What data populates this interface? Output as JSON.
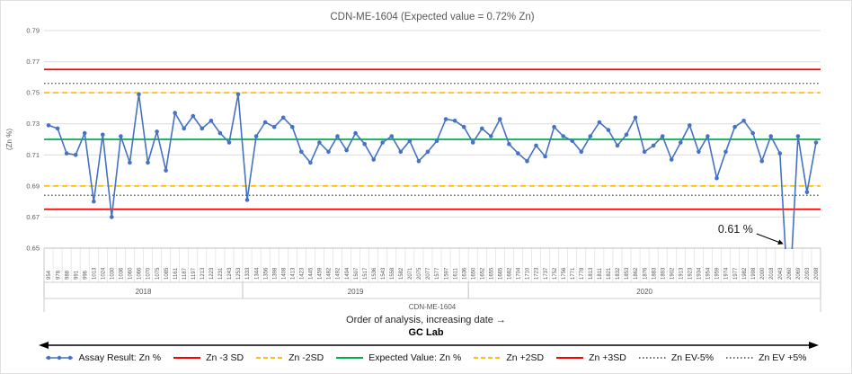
{
  "title": "CDN-ME-1604 (Expected value = 0.72% Zn)",
  "colors": {
    "series": "#4472c4",
    "red": "#ff0000",
    "gold": "#ffc000",
    "green": "#00b050",
    "dotted": "#404040",
    "grid": "#dcdcdc",
    "axis": "#bfbfbf",
    "text": "#595959"
  },
  "chart_data": {
    "type": "line",
    "title": "CDN-ME-1604 (Expected value = 0.72% Zn)",
    "ylabel": "(Zn %)",
    "xlabel": "Order of analysis, increasing date →",
    "footer": "GC Lab",
    "axis_group_label": "CDN-ME-1604",
    "ylim": [
      0.65,
      0.79
    ],
    "ytick_step": 0.02,
    "grid": true,
    "legend_position": "bottom",
    "categories": [
      "954",
      "978",
      "988",
      "991",
      "996",
      "1013",
      "1024",
      "1030",
      "1036",
      "1060",
      "1066",
      "1070",
      "1075",
      "1085",
      "1161",
      "1187",
      "1197",
      "1213",
      "1223",
      "1231",
      "1243",
      "1253",
      "1333",
      "1344",
      "1356",
      "1398",
      "1408",
      "1413",
      "1423",
      "1445",
      "1459",
      "1482",
      "1492",
      "1494",
      "1507",
      "1517",
      "1536",
      "1543",
      "1558",
      "1582",
      "2071",
      "2075",
      "2077",
      "1577",
      "1597",
      "1611",
      "1636",
      "1650",
      "1652",
      "1655",
      "1665",
      "1682",
      "1704",
      "1710",
      "1723",
      "1737",
      "1752",
      "1756",
      "1771",
      "1778",
      "1813",
      "1811",
      "1821",
      "1832",
      "1853",
      "1862",
      "1876",
      "1883",
      "1893",
      "1902",
      "1913",
      "1923",
      "1934",
      "1954",
      "1959",
      "1974",
      "1977",
      "1982",
      "1998",
      "2000",
      "2018",
      "2043",
      "2060",
      "2069",
      "2093",
      "2098"
    ],
    "series": [
      {
        "name": "Assay Result: Zn %",
        "color": "#4472c4",
        "values": [
          0.729,
          0.727,
          0.711,
          0.71,
          0.724,
          0.68,
          0.723,
          0.67,
          0.722,
          0.705,
          0.749,
          0.705,
          0.725,
          0.7,
          0.737,
          0.727,
          0.735,
          0.727,
          0.732,
          0.724,
          0.718,
          0.749,
          0.681,
          0.722,
          0.731,
          0.728,
          0.734,
          0.728,
          0.712,
          0.705,
          0.718,
          0.712,
          0.722,
          0.713,
          0.724,
          0.717,
          0.707,
          0.718,
          0.722,
          0.712,
          0.719,
          0.706,
          0.712,
          0.719,
          0.733,
          0.732,
          0.728,
          0.718,
          0.727,
          0.722,
          0.733,
          0.717,
          0.711,
          0.706,
          0.716,
          0.709,
          0.728,
          0.722,
          0.719,
          0.712,
          0.722,
          0.731,
          0.726,
          0.716,
          0.723,
          0.734,
          0.712,
          0.716,
          0.722,
          0.707,
          0.718,
          0.729,
          0.712,
          0.722,
          0.695,
          0.712,
          0.728,
          0.732,
          0.724,
          0.706,
          0.722,
          0.711,
          0.61,
          0.722,
          0.686,
          0.718
        ]
      }
    ],
    "reference_lines": [
      {
        "label": "Zn +3SD",
        "value": 0.765,
        "color": "#ff0000",
        "style": "solid"
      },
      {
        "label": "Zn EV +5%",
        "value": 0.756,
        "color": "#404040",
        "style": "dotted"
      },
      {
        "label": "Zn +2SD",
        "value": 0.75,
        "color": "#ffc000",
        "style": "dashed"
      },
      {
        "label": "Expected Value: Zn %",
        "value": 0.72,
        "color": "#00b050",
        "style": "solid"
      },
      {
        "label": "Zn -2SD",
        "value": 0.69,
        "color": "#ffc000",
        "style": "dashed"
      },
      {
        "label": "Zn EV-5%",
        "value": 0.684,
        "color": "#404040",
        "style": "dotted"
      },
      {
        "label": "Zn -3 SD",
        "value": 0.675,
        "color": "#ff0000",
        "style": "solid"
      }
    ],
    "year_bands": [
      {
        "label": "2018",
        "from": 0,
        "to": 21
      },
      {
        "label": "2019",
        "from": 22,
        "to": 46
      },
      {
        "label": "2020",
        "from": 47,
        "to": 85
      }
    ],
    "annotation": {
      "text": "0.61 %",
      "index": 82
    },
    "legend": [
      {
        "label": "Assay Result: Zn %",
        "color": "#4472c4",
        "style": "marker-line"
      },
      {
        "label": "Zn -3 SD",
        "color": "#ff0000",
        "style": "solid"
      },
      {
        "label": "Zn -2SD",
        "color": "#ffc000",
        "style": "dashed"
      },
      {
        "label": "Expected Value: Zn %",
        "color": "#00b050",
        "style": "solid"
      },
      {
        "label": "Zn +2SD",
        "color": "#ffc000",
        "style": "dashed"
      },
      {
        "label": "Zn +3SD",
        "color": "#ff0000",
        "style": "solid"
      },
      {
        "label": "Zn EV-5%",
        "color": "#404040",
        "style": "dotted"
      },
      {
        "label": "Zn EV +5%",
        "color": "#404040",
        "style": "dotted"
      }
    ]
  }
}
